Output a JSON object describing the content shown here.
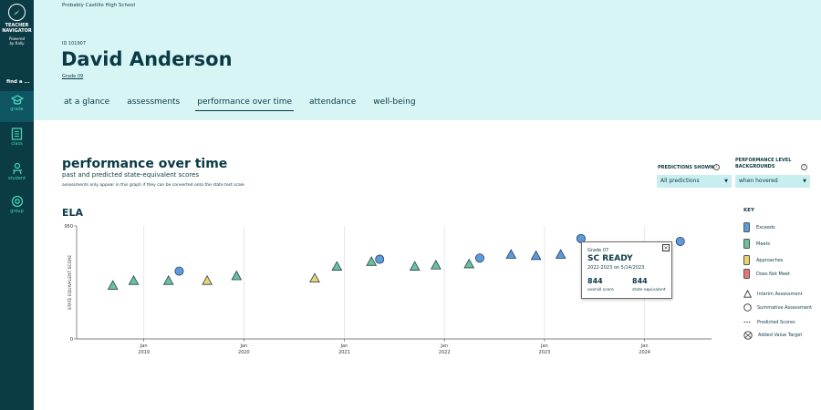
{
  "sidebar": {
    "brand_line1": "TEACHER",
    "brand_line2": "NAVIGATOR",
    "powered_line1": "Powered",
    "powered_line2": "by Rally",
    "find_label": "find a ...",
    "items": [
      {
        "label": "grade",
        "icon": "grade-icon"
      },
      {
        "label": "class",
        "icon": "class-icon"
      },
      {
        "label": "student",
        "icon": "student-icon"
      },
      {
        "label": "group",
        "icon": "group-icon"
      }
    ]
  },
  "header": {
    "school": "Probably Castillo High School",
    "student_id": "ID 101907",
    "student_name": "David Anderson",
    "grade": "Grade 09",
    "tabs": [
      {
        "label": "at a glance"
      },
      {
        "label": "assessments"
      },
      {
        "label": "performance over time"
      },
      {
        "label": "attendance"
      },
      {
        "label": "well-being"
      }
    ]
  },
  "page": {
    "title": "performance over time",
    "subtitle": "past and predicted state-equivalent scores",
    "note": "assessments only appear in this graph if they can be converted onto the state test scale",
    "section": "ELA"
  },
  "controls": {
    "predictions_label": "PREDICTIONS SHOWN",
    "predictions_value": "All predictions",
    "backgrounds_label_line1": "PERFORMANCE LEVEL",
    "backgrounds_label_line2": "BACKGROUNDS",
    "backgrounds_value": "when hovered"
  },
  "legend": {
    "title": "KEY",
    "items": [
      {
        "label": "Exceeds",
        "color": "#5b9bdd"
      },
      {
        "label": "Meets",
        "color": "#67c29b"
      },
      {
        "label": "Approaches",
        "color": "#e8d36d"
      },
      {
        "label": "Does Not Meet",
        "color": "#e87474"
      }
    ],
    "interim": "Interim Assessment",
    "summative": "Summative Assessment",
    "predicted": "Predicted Scores",
    "added_value": "Added Value Target"
  },
  "tooltip": {
    "grade": "Grade 07",
    "test": "SC READY",
    "date": "2022-2023   on 5/14/2023",
    "overall_value": "844",
    "overall_label": "overall score",
    "state_value": "844",
    "state_label": "state equivalent"
  },
  "chart_data": {
    "type": "scatter",
    "ylabel": "STATE EQUIVALENT SCORE",
    "ylim": [
      0,
      950
    ],
    "yticks": [
      0,
      950
    ],
    "xlim": [
      "2018-05-01",
      "2024-09-01"
    ],
    "x_ticks": [
      {
        "date": "2019-01-01",
        "month": "Jan",
        "year": "2019"
      },
      {
        "date": "2020-01-01",
        "month": "Jan",
        "year": "2020"
      },
      {
        "date": "2021-01-01",
        "month": "Jan",
        "year": "2021"
      },
      {
        "date": "2022-01-01",
        "month": "Jan",
        "year": "2022"
      },
      {
        "date": "2023-01-01",
        "month": "Jan",
        "year": "2023"
      },
      {
        "date": "2024-01-01",
        "month": "Jan",
        "year": "2024"
      }
    ],
    "grid": "vertical",
    "colors": {
      "Exceeds": "#5b9bdd",
      "Meets": "#67c29b",
      "Approaches": "#e8d36d",
      "Does Not Meet": "#e87474"
    },
    "points": [
      {
        "date": "2018-09-10",
        "y": 450,
        "shape": "interim",
        "level": "Meets"
      },
      {
        "date": "2018-11-25",
        "y": 490,
        "shape": "interim",
        "level": "Meets"
      },
      {
        "date": "2019-04-01",
        "y": 490,
        "shape": "interim",
        "level": "Meets"
      },
      {
        "date": "2019-05-10",
        "y": 570,
        "shape": "summative",
        "level": "Exceeds"
      },
      {
        "date": "2019-08-20",
        "y": 490,
        "shape": "interim",
        "level": "Approaches"
      },
      {
        "date": "2019-12-05",
        "y": 530,
        "shape": "interim",
        "level": "Meets"
      },
      {
        "date": "2020-09-15",
        "y": 510,
        "shape": "interim",
        "level": "Approaches"
      },
      {
        "date": "2020-12-05",
        "y": 610,
        "shape": "interim",
        "level": "Meets"
      },
      {
        "date": "2021-04-10",
        "y": 650,
        "shape": "interim",
        "level": "Meets"
      },
      {
        "date": "2021-05-10",
        "y": 670,
        "shape": "summative",
        "level": "Exceeds"
      },
      {
        "date": "2021-09-15",
        "y": 610,
        "shape": "interim",
        "level": "Meets"
      },
      {
        "date": "2021-12-01",
        "y": 620,
        "shape": "interim",
        "level": "Meets"
      },
      {
        "date": "2022-04-01",
        "y": 630,
        "shape": "interim",
        "level": "Meets"
      },
      {
        "date": "2022-05-10",
        "y": 680,
        "shape": "summative",
        "level": "Exceeds"
      },
      {
        "date": "2022-09-01",
        "y": 710,
        "shape": "interim",
        "level": "Exceeds"
      },
      {
        "date": "2022-12-01",
        "y": 700,
        "shape": "interim",
        "level": "Exceeds"
      },
      {
        "date": "2023-03-01",
        "y": 710,
        "shape": "interim",
        "level": "Exceeds"
      },
      {
        "date": "2023-05-14",
        "y": 844,
        "shape": "summative",
        "level": "Exceeds"
      },
      {
        "date": "2024-05-10",
        "y": 820,
        "shape": "summative",
        "level": "Exceeds"
      }
    ]
  }
}
